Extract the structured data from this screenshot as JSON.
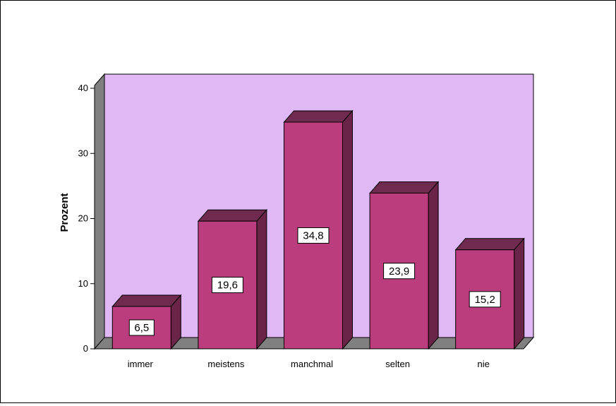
{
  "chart_data": {
    "type": "bar",
    "categories": [
      "immer",
      "meistens",
      "manchmal",
      "selten",
      "nie"
    ],
    "values": [
      6.5,
      19.6,
      34.8,
      23.9,
      15.2
    ],
    "data_labels": [
      "6,5",
      "19,6",
      "34,8",
      "23,9",
      "15,2"
    ],
    "title": "",
    "xlabel": "",
    "ylabel": "Prozent",
    "ylim": [
      0,
      40
    ],
    "yticks": [
      0,
      10,
      20,
      30,
      40
    ],
    "grid": false,
    "legend": "none",
    "style": "3d",
    "colors": {
      "bar_front": "#bb3d7d",
      "bar_top": "#6f2a50",
      "bar_side": "#6a2448",
      "back_wall": "#dfb8f5",
      "side_wall": "#808080",
      "floor": "#808080"
    }
  }
}
